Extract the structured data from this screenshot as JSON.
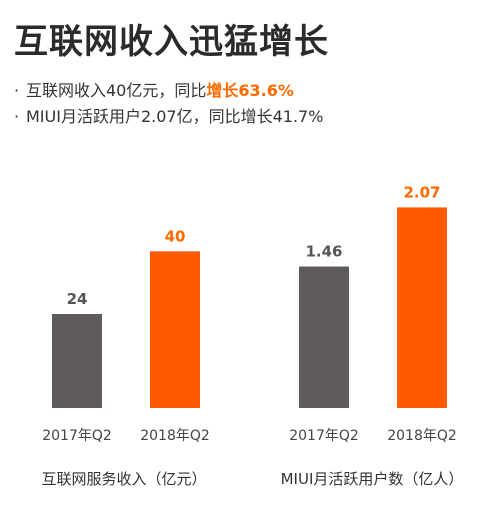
{
  "header": {
    "title": "互联网收入迅猛增长",
    "bullets": [
      {
        "prefix": "互联网收入40亿元，同比",
        "highlight": "增长63.6%"
      },
      {
        "prefix": "MIUI月活跃用户2.07亿，同比增长41.7%",
        "highlight": ""
      }
    ]
  },
  "colors": {
    "grey": "#5f5b5a",
    "orange": "#ff5a00",
    "accent_text": "#ff6a00"
  },
  "chart_data": [
    {
      "type": "bar",
      "title": "互联网服务收入（亿元）",
      "categories": [
        "2017年Q2",
        "2018年Q2"
      ],
      "values": [
        24,
        40
      ],
      "value_labels": [
        "24",
        "40"
      ],
      "ylim": [
        0,
        48
      ],
      "bar_colors": [
        "grey",
        "orange"
      ],
      "label_colors": [
        "#555555",
        "#ff6a00"
      ]
    },
    {
      "type": "bar",
      "title": "MIUI月活跃用户数（亿人）",
      "categories": [
        "2017年Q2",
        "2018年Q2"
      ],
      "values": [
        1.46,
        2.07
      ],
      "value_labels": [
        "1.46",
        "2.07"
      ],
      "ylim": [
        0,
        2.26
      ],
      "bar_colors": [
        "grey",
        "orange"
      ],
      "label_colors": [
        "#555555",
        "#ff6a00"
      ]
    }
  ]
}
